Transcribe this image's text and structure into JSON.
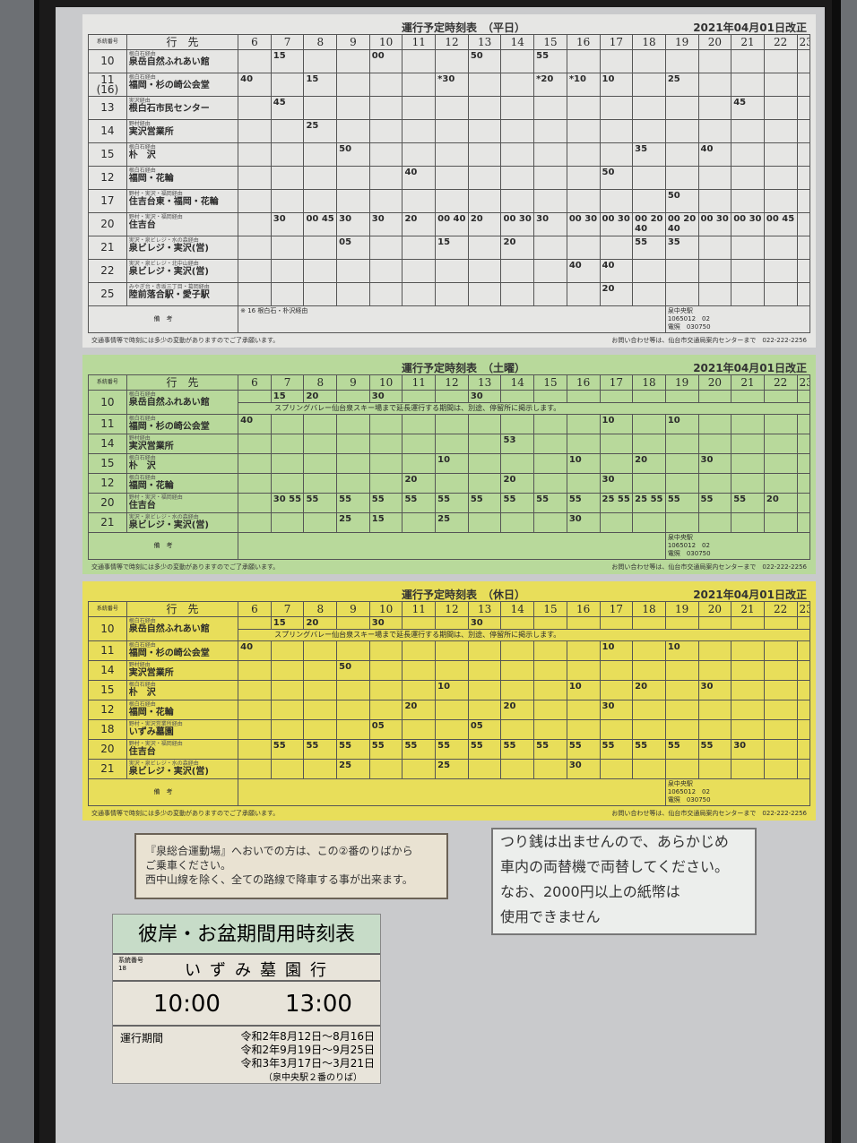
{
  "hours": [
    "6",
    "7",
    "8",
    "9",
    "10",
    "11",
    "12",
    "13",
    "14",
    "15",
    "16",
    "17",
    "18",
    "19",
    "20",
    "21",
    "22",
    "23"
  ],
  "col_route": "系統番号",
  "col_dest": "行　先",
  "tables": [
    {
      "id": "wk",
      "title": "運行予定時刻表　（平日）",
      "revised": "2021年04月01日改正",
      "remarks_label": "備　考",
      "remarks": "※ 16 根白石・朴沢経由",
      "station": "泉中央駅",
      "code": "1065012　02",
      "light": "電照　030750",
      "rows": [
        {
          "route": "10",
          "via": "根白石経由",
          "dest": "泉岳自然ふれあい館",
          "t": {
            "7": "15",
            "10": "00",
            "13": "50",
            "15": "55"
          }
        },
        {
          "route": "11 (16)",
          "via": "根白石経由",
          "dest": "福岡・杉の崎公会堂",
          "t": {
            "6": "40",
            "8": "15",
            "12": "*30",
            "15": "*20",
            "16": "*10",
            "17": "10",
            "19": "25"
          }
        },
        {
          "route": "13",
          "via": "実沢経由",
          "dest": "根白石市民センター",
          "t": {
            "7": "45",
            "21": "45"
          }
        },
        {
          "route": "14",
          "via": "野村経由",
          "dest": "実沢営業所",
          "t": {
            "8": "25"
          }
        },
        {
          "route": "15",
          "via": "根白石経由",
          "dest": "朴　沢",
          "t": {
            "9": "50",
            "18": "35",
            "20": "40"
          }
        },
        {
          "route": "12",
          "via": "根白石経由",
          "dest": "福岡・花輪",
          "t": {
            "11": "40",
            "17": "50"
          }
        },
        {
          "route": "17",
          "via": "野村・実沢・福岡経由",
          "dest": "住吉台東・福岡・花輪",
          "t": {
            "19": "50"
          }
        },
        {
          "route": "20",
          "via": "野村・実沢・福岡経由",
          "dest": "住吉台",
          "t": {
            "7": "30",
            "8": "00 45",
            "9": "30",
            "10": "30",
            "11": "20",
            "12": "00 40",
            "13": "20",
            "14": "00 30",
            "15": "30",
            "16": "00 30",
            "17": "00 30",
            "18": "00 20 40",
            "19": "00 20 40",
            "20": "00 30",
            "21": "00 30",
            "22": "00 45"
          }
        },
        {
          "route": "21",
          "via": "実沢・泉ビレジ・水の森経由",
          "dest": "泉ビレジ・実沢(営)",
          "t": {
            "9": "05",
            "12": "15",
            "14": "20",
            "18": "55",
            "19": "35"
          }
        },
        {
          "route": "22",
          "via": "実沢・泉ビレジ・北中山経由",
          "dest": "泉ビレジ・実沢(営)",
          "t": {
            "16": "40",
            "17": "40"
          }
        },
        {
          "route": "25",
          "via": "みやぎ台・赤坂三丁目・葛岡経由",
          "dest": "陸前落合駅・愛子駅",
          "t": {
            "17": "20"
          }
        }
      ],
      "foot_left": "交通事情等で時刻には多少の変動がありますのでご了承願います。",
      "foot_right": "お問い合わせ等は、仙台市交通局案内センターまで　022-222-2256"
    },
    {
      "id": "sat",
      "title": "運行予定時刻表　（土曜）",
      "revised": "2021年04月01日改正",
      "remarks_label": "備　考",
      "remarks": "",
      "station": "泉中央駅",
      "code": "1065012　02",
      "light": "電照　030750",
      "note": "スプリングバレー仙台泉スキー場まで延長運行する期間は、別途、停留所に掲示します。",
      "rows": [
        {
          "route": "10",
          "via": "根白石経由",
          "dest": "泉岳自然ふれあい館",
          "t": {
            "7": "15",
            "8": "20",
            "10": "30",
            "13": "30"
          },
          "note": true
        },
        {
          "route": "11",
          "via": "根白石経由",
          "dest": "福岡・杉の崎公会堂",
          "t": {
            "6": "40",
            "17": "10",
            "19": "10"
          }
        },
        {
          "route": "14",
          "via": "野村経由",
          "dest": "実沢営業所",
          "t": {
            "14": "53"
          }
        },
        {
          "route": "15",
          "via": "根白石経由",
          "dest": "朴　沢",
          "t": {
            "12": "10",
            "16": "10",
            "18": "20",
            "20": "30"
          }
        },
        {
          "route": "12",
          "via": "根白石経由",
          "dest": "福岡・花輪",
          "t": {
            "11": "20",
            "14": "20",
            "17": "30"
          }
        },
        {
          "route": "20",
          "via": "野村・実沢・福岡経由",
          "dest": "住吉台",
          "t": {
            "7": "30 55",
            "8": "55",
            "9": "55",
            "10": "55",
            "11": "55",
            "12": "55",
            "13": "55",
            "14": "55",
            "15": "55",
            "16": "55",
            "17": "25 55",
            "18": "25 55",
            "19": "55",
            "20": "55",
            "21": "55",
            "22": "20"
          }
        },
        {
          "route": "21",
          "via": "実沢・泉ビレジ・水の森経由",
          "dest": "泉ビレジ・実沢(営)",
          "t": {
            "9": "25",
            "10": "15",
            "12": "25",
            "16": "30"
          }
        }
      ],
      "foot_left": "交通事情等で時刻には多少の変動がありますのでご了承願います。",
      "foot_right": "お問い合わせ等は、仙台市交通局案内センターまで　022-222-2256"
    },
    {
      "id": "hol",
      "title": "運行予定時刻表　（休日）",
      "revised": "2021年04月01日改正",
      "remarks_label": "備　考",
      "remarks": "",
      "station": "泉中央駅",
      "code": "1065012　02",
      "light": "電照　030750",
      "note": "スプリングバレー仙台泉スキー場まで延長運行する期間は、別途、停留所に掲示します。",
      "rows": [
        {
          "route": "10",
          "via": "根白石経由",
          "dest": "泉岳自然ふれあい館",
          "t": {
            "7": "15",
            "8": "20",
            "10": "30",
            "13": "30"
          },
          "note": true
        },
        {
          "route": "11",
          "via": "根白石経由",
          "dest": "福岡・杉の崎公会堂",
          "t": {
            "6": "40",
            "17": "10",
            "19": "10"
          }
        },
        {
          "route": "14",
          "via": "野村経由",
          "dest": "実沢営業所",
          "t": {
            "9": "50"
          }
        },
        {
          "route": "15",
          "via": "根白石経由",
          "dest": "朴　沢",
          "t": {
            "12": "10",
            "16": "10",
            "18": "20",
            "20": "30"
          }
        },
        {
          "route": "12",
          "via": "根白石経由",
          "dest": "福岡・花輪",
          "t": {
            "11": "20",
            "14": "20",
            "17": "30"
          }
        },
        {
          "route": "18",
          "via": "野村・実沢営業所経由",
          "dest": "いずみ墓園",
          "t": {
            "10": "05",
            "13": "05"
          }
        },
        {
          "route": "20",
          "via": "野村・実沢・福岡経由",
          "dest": "住吉台",
          "t": {
            "7": "55",
            "8": "55",
            "9": "55",
            "10": "55",
            "11": "55",
            "12": "55",
            "13": "55",
            "14": "55",
            "15": "55",
            "16": "55",
            "17": "55",
            "18": "55",
            "19": "55",
            "20": "55",
            "21": "30"
          }
        },
        {
          "route": "21",
          "via": "実沢・泉ビレジ・水の森経由",
          "dest": "泉ビレジ・実沢(営)",
          "t": {
            "9": "25",
            "12": "25",
            "16": "30"
          }
        }
      ],
      "foot_left": "交通事情等で時刻には多少の変動がありますのでご了承願います。",
      "foot_right": "お問い合わせ等は、仙台市交通局案内センターまで　022-222-2256"
    }
  ],
  "notice1": [
    "『泉総合運動場』へおいでの方は、この②番のりばから",
    "ご乗車ください。",
    "西中山線を除く、全ての路線で降車する事が出来ます。"
  ],
  "notice2": [
    "つり銭は出ませんので、あらかじめ",
    "車内の両替機で両替してください。",
    "なお、2000円以上の紙幣は",
    "使用できません"
  ],
  "higan": {
    "title": "彼岸・お盆期間用時刻表",
    "route_label": "系統番号",
    "route": "18",
    "dest": "いずみ墓園行",
    "times": [
      "10:00",
      "13:00"
    ],
    "period_label": "運行期間",
    "periods": [
      "令和2年8月12日～8月16日",
      "令和2年9月19日～9月25日",
      "令和3年3月17日～3月21日"
    ],
    "stop": "（泉中央駅２番のりば）"
  }
}
